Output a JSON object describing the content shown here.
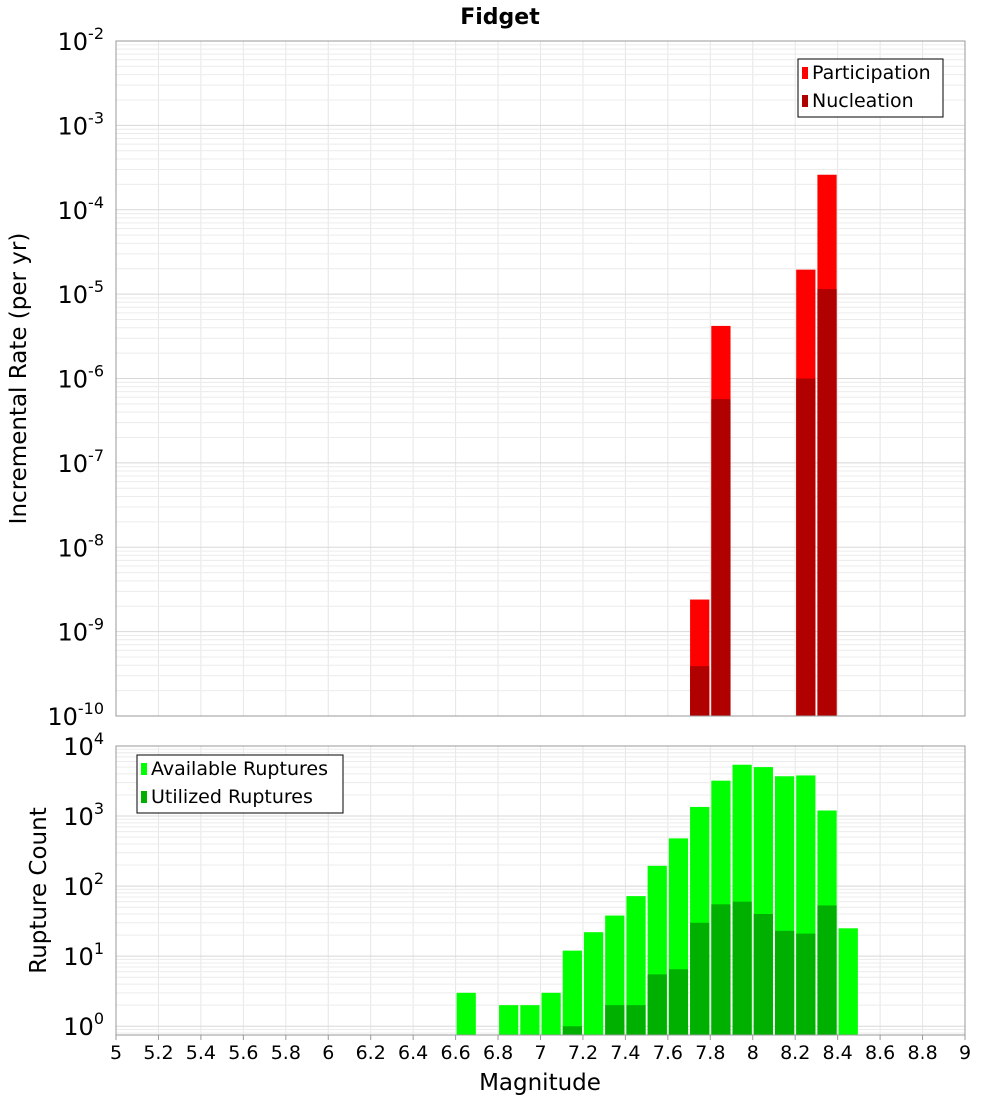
{
  "chart_data": {
    "title": "Fidget",
    "xlabel": "Magnitude",
    "xlim": [
      5,
      9
    ],
    "x_ticks": [
      "5",
      "5.2",
      "5.4",
      "5.6",
      "5.8",
      "6",
      "6.2",
      "6.4",
      "6.6",
      "6.8",
      "7",
      "7.2",
      "7.4",
      "7.6",
      "7.8",
      "8",
      "8.2",
      "8.4",
      "8.6",
      "8.8",
      "9"
    ],
    "bin_width": 0.1,
    "panels": [
      {
        "type": "bar",
        "scale": "log",
        "ylabel": "Incremental Rate (per yr)",
        "ylim": [
          1e-10,
          0.01
        ],
        "y_tick_exponents": [
          "-10",
          "-9",
          "-8",
          "-7",
          "-6",
          "-5",
          "-4",
          "-3",
          "-2"
        ],
        "legend_position": "top-right",
        "grid": true,
        "series": [
          {
            "name": "Participation",
            "color": "#ff0000",
            "x": [
              7.75,
              7.85,
              8.25,
              8.35
            ],
            "values": [
              2.4e-09,
              4.2e-06,
              1.95e-05,
              0.00026
            ]
          },
          {
            "name": "Nucleation",
            "color": "#b00000",
            "x": [
              7.75,
              7.85,
              8.25,
              8.35
            ],
            "values": [
              3.9e-10,
              5.7e-07,
              1e-06,
              1.15e-05
            ]
          }
        ]
      },
      {
        "type": "bar",
        "scale": "log",
        "ylabel": "Rupture Count",
        "ylim": [
          0.75,
          10000
        ],
        "y_tick_exponents": [
          "0",
          "1",
          "2",
          "3",
          "4"
        ],
        "legend_position": "top-left",
        "grid": true,
        "series": [
          {
            "name": "Available Ruptures",
            "color": "#00ff00",
            "x": [
              6.65,
              6.85,
              6.95,
              7.05,
              7.15,
              7.25,
              7.35,
              7.45,
              7.55,
              7.65,
              7.75,
              7.85,
              7.95,
              8.05,
              8.15,
              8.25,
              8.35,
              8.45
            ],
            "values": [
              3,
              2,
              2,
              3,
              12,
              22,
              38,
              72,
              195,
              480,
              1350,
              3200,
              5400,
              5000,
              3700,
              3800,
              1200,
              25
            ]
          },
          {
            "name": "Utilized Ruptures",
            "color": "#00b000",
            "x": [
              7.15,
              7.35,
              7.45,
              7.55,
              7.65,
              7.75,
              7.85,
              7.95,
              8.05,
              8.15,
              8.25,
              8.35
            ],
            "values": [
              1,
              2,
              2,
              5.5,
              6.5,
              30,
              55,
              60,
              40,
              23,
              21,
              53
            ]
          }
        ]
      }
    ]
  }
}
